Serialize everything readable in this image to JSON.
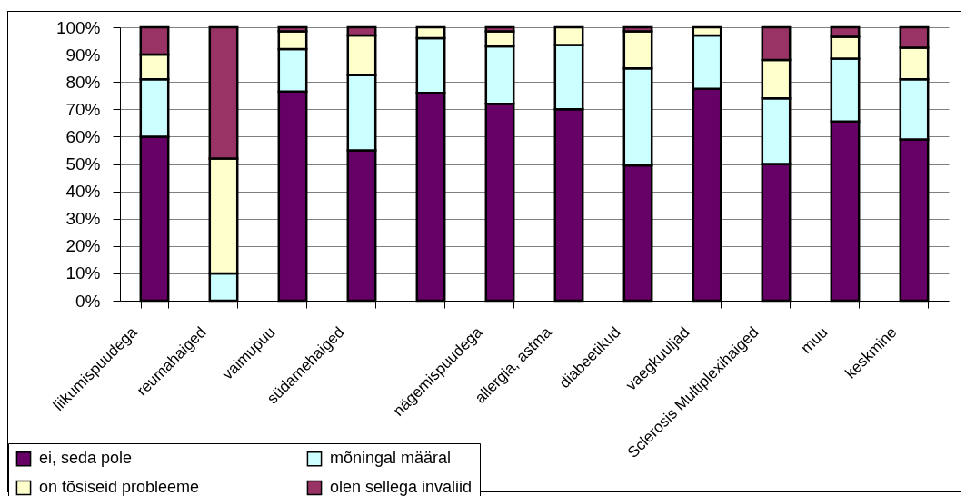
{
  "chart_data": {
    "type": "bar",
    "stacked": true,
    "categories": [
      "liikumispuudega",
      "reumahaiged",
      "vaimupuu",
      "südamehaiged",
      null,
      "nägemispuudega",
      "allergia, astma",
      "diabeetikud",
      "vaegkuuljad",
      "Sclerosis Multiplexihaiged",
      "muu",
      "keskmine"
    ],
    "series": [
      {
        "name": "ei, seda pole",
        "color": "#660066",
        "values": [
          60,
          0,
          76.5,
          55,
          76,
          72,
          70,
          49.5,
          77.5,
          50,
          65.5,
          59
        ]
      },
      {
        "name": "mõningal määral",
        "color": "#ccffff",
        "values": [
          21,
          10,
          15.5,
          27.5,
          20,
          21,
          23.5,
          35.5,
          19.5,
          24,
          23,
          22
        ]
      },
      {
        "name": "on tõsiseid probleeme",
        "color": "#ffffcc",
        "values": [
          9,
          42,
          6.5,
          14.5,
          4,
          5.5,
          6.5,
          13.5,
          3,
          14,
          8,
          11.5
        ]
      },
      {
        "name": "olen sellega invaliid",
        "color": "#993366",
        "values": [
          10,
          48,
          1.5,
          3,
          0,
          1.5,
          0,
          1.5,
          0,
          12,
          3.5,
          7.5
        ]
      }
    ],
    "ylim": [
      0,
      100
    ],
    "yticks": [
      {
        "value": 0,
        "label": "0%"
      },
      {
        "value": 10,
        "label": "10%"
      },
      {
        "value": 20,
        "label": "20%"
      },
      {
        "value": 30,
        "label": "30%"
      },
      {
        "value": 40,
        "label": "40%"
      },
      {
        "value": 50,
        "label": "50%"
      },
      {
        "value": 60,
        "label": "60%"
      },
      {
        "value": 70,
        "label": "70%"
      },
      {
        "value": 80,
        "label": "80%"
      },
      {
        "value": 90,
        "label": "90%"
      },
      {
        "value": 100,
        "label": "100%"
      }
    ],
    "grid": "y",
    "legend": "bottom left"
  }
}
